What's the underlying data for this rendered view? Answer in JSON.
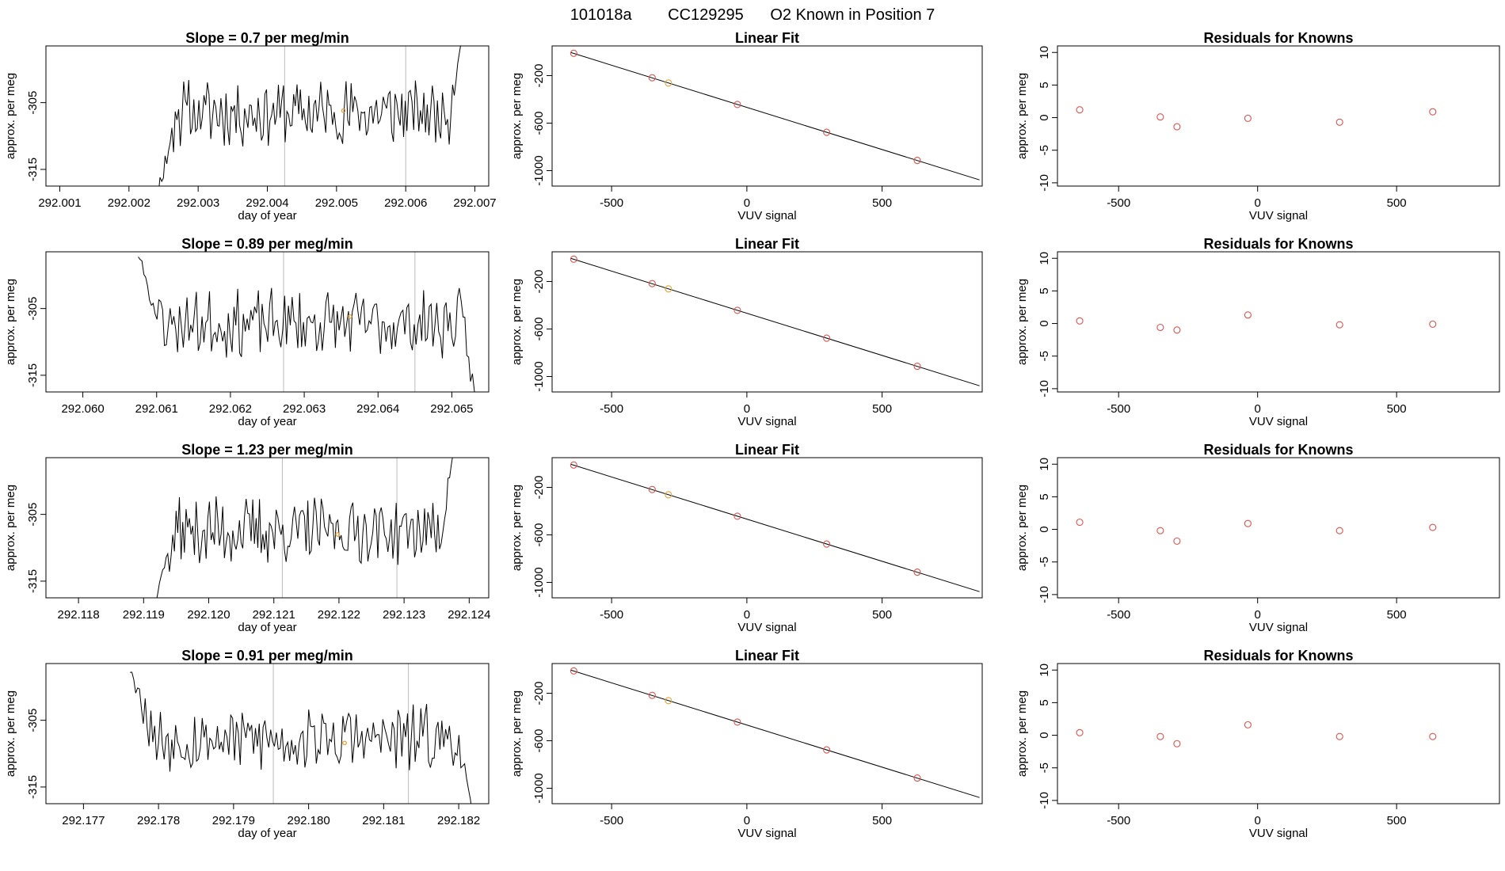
{
  "page_title": {
    "run_id": "101018a",
    "cylinder": "CC129295",
    "description": "O2 Known in Position  7"
  },
  "colors": {
    "line": "#000000",
    "frame": "#000000",
    "vline": "#bbbbbb",
    "fit_point": "#d9534f",
    "highlight_point": "#e8a33a",
    "residual_point": "#d9534f"
  },
  "chart_data": [
    {
      "row": 1,
      "type": "line",
      "title": "Slope =  0.7  per meg/min",
      "xlabel": "day of year",
      "ylabel": "approx. per meg",
      "xlim": [
        292.0008,
        292.0072
      ],
      "ylim": [
        -317.5,
        -296.5
      ],
      "xticks": [
        "292.001",
        "292.002",
        "292.003",
        "292.004",
        "292.005",
        "292.006",
        "292.007"
      ],
      "xtick_values": [
        292.001,
        292.002,
        292.003,
        292.004,
        292.005,
        292.006,
        292.007
      ],
      "yticks": [
        "-305",
        "-315"
      ],
      "ytick_values": [
        -305,
        -315
      ],
      "vlines": [
        292.00425,
        292.006
      ],
      "x_start": 292.0024,
      "x_end": 292.0068,
      "mean": -306.5,
      "highlight": {
        "x": 292.0051,
        "y": -306.2
      },
      "seed": 11,
      "start_y": -319,
      "end_y": -296
    },
    {
      "row": 2,
      "type": "fit",
      "title": "Linear Fit",
      "xlabel": "VUV signal",
      "ylabel": "approx. per meg",
      "xlim": [
        -720,
        870
      ],
      "ylim": [
        -1130,
        50
      ],
      "xticks": [
        "-500",
        "0",
        "500"
      ],
      "xtick_values": [
        -500,
        0,
        500
      ],
      "yticks": [
        "-200",
        "-600",
        "-1000"
      ],
      "ytick_values": [
        -200,
        -600,
        -1000
      ],
      "line": {
        "x1": -650,
        "y1": -6,
        "x2": 860,
        "y2": -1078
      },
      "points": [
        {
          "x": -640,
          "y": -12
        },
        {
          "x": -350,
          "y": -218
        },
        {
          "x": -290,
          "y": -262
        },
        {
          "x": -35,
          "y": -443
        },
        {
          "x": 295,
          "y": -677
        },
        {
          "x": 630,
          "y": -914
        }
      ],
      "highlight_point_index": 2
    },
    {
      "row": 3,
      "type": "residual",
      "title": "Residuals for Knowns",
      "xlabel": "VUV signal",
      "ylabel": "approx. per meg",
      "xlim": [
        -720,
        870
      ],
      "ylim": [
        -10.5,
        11
      ],
      "xticks": [
        "-500",
        "0",
        "500"
      ],
      "xtick_values": [
        -500,
        0,
        500
      ],
      "yticks": [
        "10",
        "5",
        "0",
        "-5",
        "-10"
      ],
      "ytick_values": [
        10,
        5,
        0,
        -5,
        -10
      ],
      "points": [
        {
          "x": -640,
          "y": 1.2
        },
        {
          "x": -350,
          "y": 0.1
        },
        {
          "x": -290,
          "y": -1.4
        },
        {
          "x": -35,
          "y": -0.1
        },
        {
          "x": 295,
          "y": -0.7
        },
        {
          "x": 630,
          "y": 0.9
        }
      ]
    },
    {
      "row": 4,
      "type": "line",
      "title": "Slope =  0.89  per meg/min",
      "xlabel": "day of year",
      "ylabel": "approx. per meg",
      "xlim": [
        292.0595,
        292.0655
      ],
      "ylim": [
        -317.5,
        -296.5
      ],
      "xticks": [
        "292.060",
        "292.061",
        "292.062",
        "292.063",
        "292.064",
        "292.065"
      ],
      "xtick_values": [
        292.06,
        292.061,
        292.062,
        292.063,
        292.064,
        292.065
      ],
      "yticks": [
        "-305",
        "-315"
      ],
      "ytick_values": [
        -305,
        -315
      ],
      "vlines": [
        292.06272,
        292.0645
      ],
      "x_start": 292.06075,
      "x_end": 292.06533,
      "mean": -307.3,
      "highlight": {
        "x": 292.06362,
        "y": -306.2
      },
      "seed": 23,
      "start_y": -297,
      "end_y": -319
    },
    {
      "row": 5,
      "type": "fit",
      "title": "Linear Fit",
      "xlabel": "VUV signal",
      "ylabel": "approx. per meg",
      "xlim": [
        -720,
        870
      ],
      "ylim": [
        -1130,
        50
      ],
      "xticks": [
        "-500",
        "0",
        "500"
      ],
      "xtick_values": [
        -500,
        0,
        500
      ],
      "yticks": [
        "-200",
        "-600",
        "-1000"
      ],
      "ytick_values": [
        -200,
        -600,
        -1000
      ],
      "line": {
        "x1": -650,
        "y1": -6,
        "x2": 860,
        "y2": -1078
      },
      "points": [
        {
          "x": -640,
          "y": -12
        },
        {
          "x": -350,
          "y": -218
        },
        {
          "x": -290,
          "y": -262
        },
        {
          "x": -35,
          "y": -443
        },
        {
          "x": 295,
          "y": -677
        },
        {
          "x": 630,
          "y": -914
        }
      ],
      "highlight_point_index": 2
    },
    {
      "row": 6,
      "type": "residual",
      "title": "Residuals for Knowns",
      "xlabel": "VUV signal",
      "ylabel": "approx. per meg",
      "xlim": [
        -720,
        870
      ],
      "ylim": [
        -10.5,
        11
      ],
      "xticks": [
        "-500",
        "0",
        "500"
      ],
      "xtick_values": [
        -500,
        0,
        500
      ],
      "yticks": [
        "10",
        "5",
        "0",
        "-5",
        "-10"
      ],
      "ytick_values": [
        10,
        5,
        0,
        -5,
        -10
      ],
      "points": [
        {
          "x": -640,
          "y": 0.4
        },
        {
          "x": -350,
          "y": -0.6
        },
        {
          "x": -290,
          "y": -1.0
        },
        {
          "x": -35,
          "y": 1.3
        },
        {
          "x": 295,
          "y": -0.2
        },
        {
          "x": 630,
          "y": -0.1
        }
      ]
    },
    {
      "row": 7,
      "type": "line",
      "title": "Slope =  1.23  per meg/min",
      "xlabel": "day of year",
      "ylabel": "approx. per meg",
      "xlim": [
        292.1175,
        292.1243
      ],
      "ylim": [
        -317.5,
        -296.5
      ],
      "xticks": [
        "292.118",
        "292.119",
        "292.120",
        "292.121",
        "292.122",
        "292.123",
        "292.124"
      ],
      "xtick_values": [
        292.118,
        292.119,
        292.12,
        292.121,
        292.122,
        292.123,
        292.124
      ],
      "yticks": [
        "-305",
        "-315"
      ],
      "ytick_values": [
        -305,
        -315
      ],
      "vlines": [
        292.12113,
        292.12289
      ],
      "x_start": 292.11914,
      "x_end": 292.12375,
      "mean": -307.5,
      "highlight": {
        "x": 292.12198,
        "y": -308.0
      },
      "seed": 37,
      "start_y": -319,
      "end_y": -296
    },
    {
      "row": 8,
      "type": "fit",
      "title": "Linear Fit",
      "xlabel": "VUV signal",
      "ylabel": "approx. per meg",
      "xlim": [
        -720,
        870
      ],
      "ylim": [
        -1130,
        50
      ],
      "xticks": [
        "-500",
        "0",
        "500"
      ],
      "xtick_values": [
        -500,
        0,
        500
      ],
      "yticks": [
        "-200",
        "-600",
        "-1000"
      ],
      "ytick_values": [
        -200,
        -600,
        -1000
      ],
      "line": {
        "x1": -650,
        "y1": -6,
        "x2": 860,
        "y2": -1078
      },
      "points": [
        {
          "x": -640,
          "y": -12
        },
        {
          "x": -350,
          "y": -218
        },
        {
          "x": -290,
          "y": -262
        },
        {
          "x": -35,
          "y": -443
        },
        {
          "x": 295,
          "y": -677
        },
        {
          "x": 630,
          "y": -914
        }
      ],
      "highlight_point_index": 2
    },
    {
      "row": 9,
      "type": "residual",
      "title": "Residuals for Knowns",
      "xlabel": "VUV signal",
      "ylabel": "approx. per meg",
      "xlim": [
        -720,
        870
      ],
      "ylim": [
        -10.5,
        11
      ],
      "xticks": [
        "-500",
        "0",
        "500"
      ],
      "xtick_values": [
        -500,
        0,
        500
      ],
      "yticks": [
        "10",
        "5",
        "0",
        "-5",
        "-10"
      ],
      "ytick_values": [
        10,
        5,
        0,
        -5,
        -10
      ],
      "points": [
        {
          "x": -640,
          "y": 1.1
        },
        {
          "x": -350,
          "y": -0.2
        },
        {
          "x": -290,
          "y": -1.8
        },
        {
          "x": -35,
          "y": 0.9
        },
        {
          "x": 295,
          "y": -0.2
        },
        {
          "x": 630,
          "y": 0.3
        }
      ]
    },
    {
      "row": 10,
      "type": "line",
      "title": "Slope =  0.91  per meg/min",
      "xlabel": "day of year",
      "ylabel": "approx. per meg",
      "xlim": [
        292.1765,
        292.1824
      ],
      "ylim": [
        -317.5,
        -296.5
      ],
      "xticks": [
        "292.177",
        "292.178",
        "292.179",
        "292.180",
        "292.181",
        "292.182"
      ],
      "xtick_values": [
        292.177,
        292.178,
        292.179,
        292.18,
        292.181,
        292.182
      ],
      "yticks": [
        "-305",
        "-315"
      ],
      "ytick_values": [
        -305,
        -315
      ],
      "vlines": [
        292.17953,
        292.18133
      ],
      "x_start": 292.17762,
      "x_end": 292.18218,
      "mean": -307.8,
      "highlight": {
        "x": 292.18048,
        "y": -308.4
      },
      "seed": 53,
      "start_y": -297,
      "end_y": -319
    },
    {
      "row": 11,
      "type": "fit",
      "title": "Linear Fit",
      "xlabel": "VUV signal",
      "ylabel": "approx. per meg",
      "xlim": [
        -720,
        870
      ],
      "ylim": [
        -1130,
        50
      ],
      "xticks": [
        "-500",
        "0",
        "500"
      ],
      "xtick_values": [
        -500,
        0,
        500
      ],
      "yticks": [
        "-200",
        "-600",
        "-1000"
      ],
      "ytick_values": [
        -200,
        -600,
        -1000
      ],
      "line": {
        "x1": -650,
        "y1": -6,
        "x2": 860,
        "y2": -1078
      },
      "points": [
        {
          "x": -640,
          "y": -12
        },
        {
          "x": -350,
          "y": -218
        },
        {
          "x": -290,
          "y": -262
        },
        {
          "x": -35,
          "y": -443
        },
        {
          "x": 295,
          "y": -677
        },
        {
          "x": 630,
          "y": -914
        }
      ],
      "highlight_point_index": 2
    },
    {
      "row": 12,
      "type": "residual",
      "title": "Residuals for Knowns",
      "xlabel": "VUV signal",
      "ylabel": "approx. per meg",
      "xlim": [
        -720,
        870
      ],
      "ylim": [
        -10.5,
        11
      ],
      "xticks": [
        "-500",
        "0",
        "500"
      ],
      "xtick_values": [
        -500,
        0,
        500
      ],
      "yticks": [
        "10",
        "5",
        "0",
        "-5",
        "-10"
      ],
      "ytick_values": [
        10,
        5,
        0,
        -5,
        -10
      ],
      "points": [
        {
          "x": -640,
          "y": 0.4
        },
        {
          "x": -350,
          "y": -0.2
        },
        {
          "x": -290,
          "y": -1.3
        },
        {
          "x": -35,
          "y": 1.6
        },
        {
          "x": 295,
          "y": -0.2
        },
        {
          "x": 630,
          "y": -0.2
        }
      ]
    }
  ]
}
